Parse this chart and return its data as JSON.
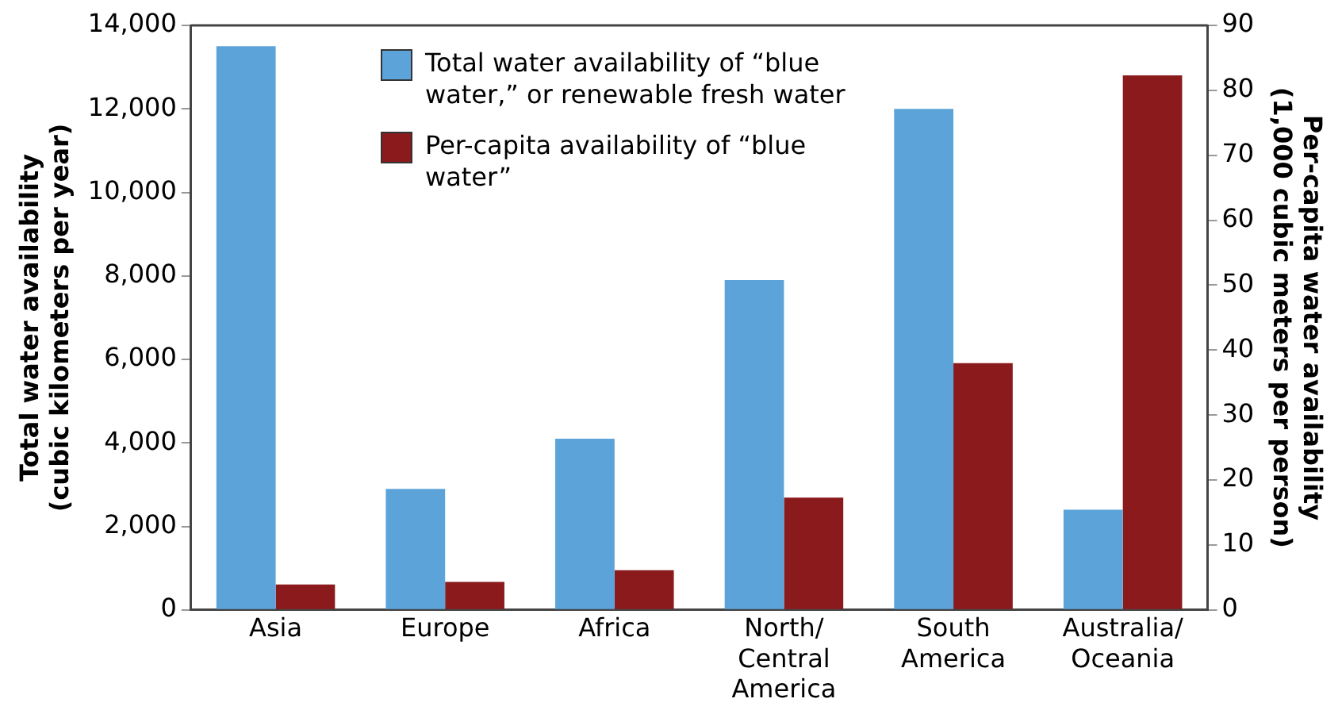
{
  "chart_data": {
    "type": "bar",
    "categories": [
      "Asia",
      "Europe",
      "Africa",
      "North/Central America",
      "South America",
      "Australia/Oceania"
    ],
    "series": [
      {
        "name": "Total water availability of “blue water,” or renewable fresh water",
        "color": "#5ba3d9",
        "values": [
          13500,
          2900,
          4100,
          7900,
          12000,
          2400
        ]
      },
      {
        "name": "Per-capita availability of “blue water”",
        "color": "#8b1a1d",
        "axis": "y2",
        "values": [
          3.9,
          4.3,
          6.1,
          17.3,
          38.0,
          82.3
        ]
      }
    ],
    "ylabel": "Total water availability (cubic kilometers per year)",
    "y2label": "Per-capita water availability (1,000 cubic meters per person)",
    "ylim": [
      0,
      14000
    ],
    "yticks": [
      0,
      {
        "value": 2000,
        "label": "2,000"
      },
      {
        "value": 4000,
        "label": "4,000"
      },
      {
        "value": 6000,
        "label": "6,000"
      },
      {
        "value": 8000,
        "label": "8,000"
      },
      {
        "value": 10000,
        "label": "10,000"
      },
      {
        "value": 12000,
        "label": "12,000"
      },
      {
        "value": 14000,
        "label": "14,000"
      }
    ],
    "y2lim": [
      0,
      90
    ],
    "y2ticks": [
      0,
      10,
      20,
      30,
      40,
      50,
      60,
      70,
      80,
      90
    ],
    "legend": "top",
    "grid": false
  }
}
